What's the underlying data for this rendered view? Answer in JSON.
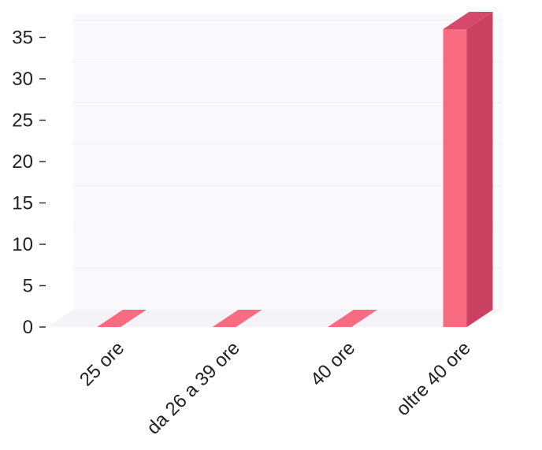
{
  "chart_data": {
    "type": "bar",
    "categories": [
      "25 ore",
      "da 26 a 39 ore",
      "40 ore",
      "oltre 40 ore"
    ],
    "values": [
      0,
      0,
      0,
      36
    ],
    "ylim": [
      0,
      38
    ],
    "yticks": [
      0,
      5,
      10,
      15,
      20,
      25,
      30,
      35
    ],
    "grid": true,
    "legend": "none",
    "colors": {
      "bar_front": "#f96b80",
      "bar_side": "#c94262",
      "bar_top": "#d54a6a",
      "grid": "#f1f1f5",
      "floor": "#f4f4f8"
    }
  }
}
